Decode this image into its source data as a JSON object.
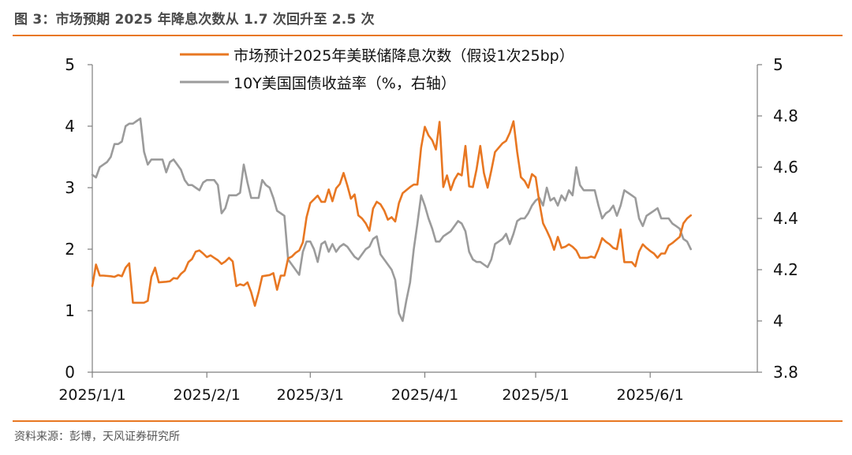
{
  "figure": {
    "title": "图 3：市场预期 2025 年降息次数从 1.7 次回升至 2.5 次",
    "source": "资料来源：彭博，天风证券研究所",
    "accent_color": "#E87722"
  },
  "chart_data": {
    "type": "line",
    "x_tick_labels": [
      "2025/1/1",
      "2025/2/1",
      "2025/3/1",
      "2025/4/1",
      "2025/5/1",
      "2025/6/1"
    ],
    "x_tick_index": [
      0,
      31,
      59,
      90,
      120,
      151
    ],
    "x_range_days": [
      0,
      180
    ],
    "left_axis": {
      "ticks": [
        "0",
        "1",
        "2",
        "3",
        "4",
        "5"
      ],
      "ylim": [
        0,
        5
      ]
    },
    "right_axis": {
      "ticks": [
        "3.8",
        "4",
        "4.2",
        "4.4",
        "4.6",
        "4.8",
        "5"
      ],
      "ylim": [
        3.8,
        5
      ]
    },
    "grid": false,
    "legend": "top-center",
    "series": [
      {
        "name": "市场预计2025年美联储降息次数（假设1次25bp）",
        "axis": "left",
        "color": "#E87722",
        "points": [
          [
            0,
            1.4
          ],
          [
            1,
            1.75
          ],
          [
            2,
            1.57
          ],
          [
            3,
            1.57
          ],
          [
            5,
            1.56
          ],
          [
            6,
            1.55
          ],
          [
            7,
            1.58
          ],
          [
            8,
            1.56
          ],
          [
            9,
            1.7
          ],
          [
            10,
            1.77
          ],
          [
            11,
            1.13
          ],
          [
            12,
            1.13
          ],
          [
            14,
            1.13
          ],
          [
            15,
            1.16
          ],
          [
            16,
            1.55
          ],
          [
            17,
            1.7
          ],
          [
            18,
            1.46
          ],
          [
            20,
            1.47
          ],
          [
            21,
            1.48
          ],
          [
            22,
            1.53
          ],
          [
            23,
            1.52
          ],
          [
            24,
            1.6
          ],
          [
            25,
            1.65
          ],
          [
            26,
            1.79
          ],
          [
            27,
            1.84
          ],
          [
            28,
            1.96
          ],
          [
            29,
            1.98
          ],
          [
            30,
            1.93
          ],
          [
            31,
            1.87
          ],
          [
            32,
            1.9
          ],
          [
            33,
            1.86
          ],
          [
            34,
            1.82
          ],
          [
            35,
            1.76
          ],
          [
            36,
            1.8
          ],
          [
            37,
            1.86
          ],
          [
            38,
            1.8
          ],
          [
            39,
            1.4
          ],
          [
            40,
            1.43
          ],
          [
            41,
            1.41
          ],
          [
            42,
            1.46
          ],
          [
            43,
            1.3
          ],
          [
            44,
            1.08
          ],
          [
            45,
            1.3
          ],
          [
            46,
            1.56
          ],
          [
            48,
            1.58
          ],
          [
            49,
            1.61
          ],
          [
            50,
            1.34
          ],
          [
            51,
            1.57
          ],
          [
            52,
            1.57
          ],
          [
            53,
            1.85
          ],
          [
            54,
            1.88
          ],
          [
            55,
            1.94
          ],
          [
            56,
            1.98
          ],
          [
            57,
            2.11
          ],
          [
            58,
            2.52
          ],
          [
            59,
            2.75
          ],
          [
            60,
            2.81
          ],
          [
            61,
            2.87
          ],
          [
            62,
            2.77
          ],
          [
            63,
            2.77
          ],
          [
            64,
            2.97
          ],
          [
            65,
            2.78
          ],
          [
            66,
            2.99
          ],
          [
            67,
            3.06
          ],
          [
            68,
            3.24
          ],
          [
            69,
            3.04
          ],
          [
            70,
            2.82
          ],
          [
            71,
            2.89
          ],
          [
            72,
            2.55
          ],
          [
            73,
            2.5
          ],
          [
            74,
            2.42
          ],
          [
            75,
            2.3
          ],
          [
            76,
            2.66
          ],
          [
            77,
            2.77
          ],
          [
            78,
            2.73
          ],
          [
            79,
            2.63
          ],
          [
            80,
            2.48
          ],
          [
            81,
            2.52
          ],
          [
            82,
            2.45
          ],
          [
            83,
            2.75
          ],
          [
            84,
            2.91
          ],
          [
            85,
            2.96
          ],
          [
            86,
            3.01
          ],
          [
            87,
            3.05
          ],
          [
            88,
            3.05
          ],
          [
            89,
            3.65
          ],
          [
            90,
            3.99
          ],
          [
            91,
            3.85
          ],
          [
            92,
            3.77
          ],
          [
            93,
            3.62
          ],
          [
            94,
            4.07
          ],
          [
            95,
            3.01
          ],
          [
            96,
            3.2
          ],
          [
            97,
            2.96
          ],
          [
            98,
            3.13
          ],
          [
            99,
            3.23
          ],
          [
            100,
            3.2
          ],
          [
            101,
            3.68
          ],
          [
            102,
            3.02
          ],
          [
            103,
            3.01
          ],
          [
            104,
            3.3
          ],
          [
            105,
            3.68
          ],
          [
            106,
            3.24
          ],
          [
            107,
            3.0
          ],
          [
            108,
            3.28
          ],
          [
            109,
            3.58
          ],
          [
            110,
            3.65
          ],
          [
            111,
            3.72
          ],
          [
            112,
            3.76
          ],
          [
            113,
            3.89
          ],
          [
            114,
            4.08
          ],
          [
            115,
            3.58
          ],
          [
            116,
            3.17
          ],
          [
            117,
            3.11
          ],
          [
            118,
            3.0
          ],
          [
            119,
            3.22
          ],
          [
            120,
            3.17
          ],
          [
            121,
            2.76
          ],
          [
            122,
            2.42
          ],
          [
            123,
            2.3
          ],
          [
            124,
            2.17
          ],
          [
            125,
            1.99
          ],
          [
            126,
            2.2
          ],
          [
            127,
            2.02
          ],
          [
            128,
            2.04
          ],
          [
            129,
            2.08
          ],
          [
            130,
            2.04
          ],
          [
            131,
            1.98
          ],
          [
            132,
            1.86
          ],
          [
            133,
            1.86
          ],
          [
            134,
            1.86
          ],
          [
            135,
            1.88
          ],
          [
            136,
            1.86
          ],
          [
            137,
            2.0
          ],
          [
            138,
            2.18
          ],
          [
            139,
            2.12
          ],
          [
            140,
            2.08
          ],
          [
            141,
            2.02
          ],
          [
            142,
            2.0
          ],
          [
            143,
            2.32
          ],
          [
            144,
            1.79
          ],
          [
            145,
            1.79
          ],
          [
            146,
            1.79
          ],
          [
            147,
            1.72
          ],
          [
            148,
            1.96
          ],
          [
            149,
            2.08
          ],
          [
            150,
            2.02
          ],
          [
            151,
            1.97
          ],
          [
            152,
            1.93
          ],
          [
            153,
            1.86
          ],
          [
            154,
            1.93
          ],
          [
            155,
            1.93
          ],
          [
            156,
            2.06
          ],
          [
            157,
            2.1
          ],
          [
            158,
            2.15
          ],
          [
            159,
            2.2
          ],
          [
            160,
            2.42
          ],
          [
            161,
            2.5
          ],
          [
            162,
            2.55
          ]
        ]
      },
      {
        "name": "10Y美国国债收益率（%，右轴）",
        "axis": "right",
        "color": "#9B9B9B",
        "points": [
          [
            0,
            4.57
          ],
          [
            1,
            4.56
          ],
          [
            2,
            4.6
          ],
          [
            3,
            4.61
          ],
          [
            4,
            4.62
          ],
          [
            5,
            4.64
          ],
          [
            6,
            4.69
          ],
          [
            7,
            4.69
          ],
          [
            8,
            4.7
          ],
          [
            9,
            4.76
          ],
          [
            10,
            4.77
          ],
          [
            11,
            4.77
          ],
          [
            12,
            4.78
          ],
          [
            13,
            4.79
          ],
          [
            14,
            4.66
          ],
          [
            15,
            4.61
          ],
          [
            16,
            4.63
          ],
          [
            17,
            4.63
          ],
          [
            18,
            4.63
          ],
          [
            19,
            4.63
          ],
          [
            20,
            4.58
          ],
          [
            21,
            4.62
          ],
          [
            22,
            4.63
          ],
          [
            23,
            4.61
          ],
          [
            24,
            4.59
          ],
          [
            25,
            4.55
          ],
          [
            26,
            4.53
          ],
          [
            27,
            4.53
          ],
          [
            28,
            4.52
          ],
          [
            29,
            4.51
          ],
          [
            30,
            4.54
          ],
          [
            31,
            4.55
          ],
          [
            32,
            4.55
          ],
          [
            33,
            4.55
          ],
          [
            34,
            4.53
          ],
          [
            35,
            4.42
          ],
          [
            36,
            4.44
          ],
          [
            37,
            4.49
          ],
          [
            38,
            4.49
          ],
          [
            39,
            4.49
          ],
          [
            40,
            4.5
          ],
          [
            41,
            4.61
          ],
          [
            42,
            4.54
          ],
          [
            43,
            4.48
          ],
          [
            44,
            4.48
          ],
          [
            45,
            4.48
          ],
          [
            46,
            4.55
          ],
          [
            47,
            4.53
          ],
          [
            48,
            4.52
          ],
          [
            49,
            4.48
          ],
          [
            50,
            4.43
          ],
          [
            51,
            4.42
          ],
          [
            52,
            4.41
          ],
          [
            53,
            4.24
          ],
          [
            54,
            4.22
          ],
          [
            55,
            4.2
          ],
          [
            56,
            4.18
          ],
          [
            57,
            4.27
          ],
          [
            58,
            4.31
          ],
          [
            59,
            4.31
          ],
          [
            60,
            4.28
          ],
          [
            61,
            4.23
          ],
          [
            62,
            4.3
          ],
          [
            63,
            4.31
          ],
          [
            64,
            4.27
          ],
          [
            65,
            4.3
          ],
          [
            66,
            4.27
          ],
          [
            67,
            4.29
          ],
          [
            68,
            4.3
          ],
          [
            69,
            4.29
          ],
          [
            70,
            4.27
          ],
          [
            71,
            4.25
          ],
          [
            72,
            4.24
          ],
          [
            73,
            4.26
          ],
          [
            74,
            4.28
          ],
          [
            75,
            4.29
          ],
          [
            76,
            4.32
          ],
          [
            77,
            4.33
          ],
          [
            78,
            4.26
          ],
          [
            79,
            4.24
          ],
          [
            80,
            4.22
          ],
          [
            81,
            4.2
          ],
          [
            82,
            4.16
          ],
          [
            83,
            4.03
          ],
          [
            84,
            4.0
          ],
          [
            85,
            4.08
          ],
          [
            86,
            4.15
          ],
          [
            87,
            4.28
          ],
          [
            88,
            4.38
          ],
          [
            89,
            4.49
          ],
          [
            90,
            4.45
          ],
          [
            91,
            4.4
          ],
          [
            92,
            4.36
          ],
          [
            93,
            4.31
          ],
          [
            94,
            4.31
          ],
          [
            95,
            4.33
          ],
          [
            96,
            4.34
          ],
          [
            97,
            4.35
          ],
          [
            98,
            4.37
          ],
          [
            99,
            4.39
          ],
          [
            100,
            4.38
          ],
          [
            101,
            4.35
          ],
          [
            102,
            4.27
          ],
          [
            103,
            4.24
          ],
          [
            104,
            4.23
          ],
          [
            105,
            4.23
          ],
          [
            106,
            4.22
          ],
          [
            107,
            4.21
          ],
          [
            108,
            4.24
          ],
          [
            109,
            4.3
          ],
          [
            110,
            4.31
          ],
          [
            111,
            4.32
          ],
          [
            112,
            4.34
          ],
          [
            113,
            4.3
          ],
          [
            114,
            4.34
          ],
          [
            115,
            4.39
          ],
          [
            116,
            4.4
          ],
          [
            117,
            4.4
          ],
          [
            118,
            4.42
          ],
          [
            119,
            4.45
          ],
          [
            120,
            4.47
          ],
          [
            121,
            4.48
          ],
          [
            122,
            4.45
          ],
          [
            123,
            4.52
          ],
          [
            124,
            4.47
          ],
          [
            125,
            4.48
          ],
          [
            126,
            4.45
          ],
          [
            127,
            4.49
          ],
          [
            128,
            4.47
          ],
          [
            129,
            4.51
          ],
          [
            130,
            4.49
          ],
          [
            131,
            4.6
          ],
          [
            132,
            4.53
          ],
          [
            133,
            4.51
          ],
          [
            134,
            4.51
          ],
          [
            135,
            4.51
          ],
          [
            136,
            4.51
          ],
          [
            137,
            4.45
          ],
          [
            138,
            4.4
          ],
          [
            139,
            4.42
          ],
          [
            140,
            4.43
          ],
          [
            141,
            4.45
          ],
          [
            142,
            4.41
          ],
          [
            143,
            4.45
          ],
          [
            144,
            4.51
          ],
          [
            145,
            4.5
          ],
          [
            146,
            4.49
          ],
          [
            147,
            4.48
          ],
          [
            148,
            4.4
          ],
          [
            149,
            4.37
          ],
          [
            150,
            4.41
          ],
          [
            151,
            4.42
          ],
          [
            152,
            4.43
          ],
          [
            153,
            4.44
          ],
          [
            154,
            4.4
          ],
          [
            155,
            4.4
          ],
          [
            156,
            4.4
          ],
          [
            157,
            4.38
          ],
          [
            158,
            4.37
          ],
          [
            159,
            4.36
          ],
          [
            160,
            4.32
          ],
          [
            161,
            4.31
          ],
          [
            162,
            4.28
          ]
        ]
      }
    ]
  }
}
